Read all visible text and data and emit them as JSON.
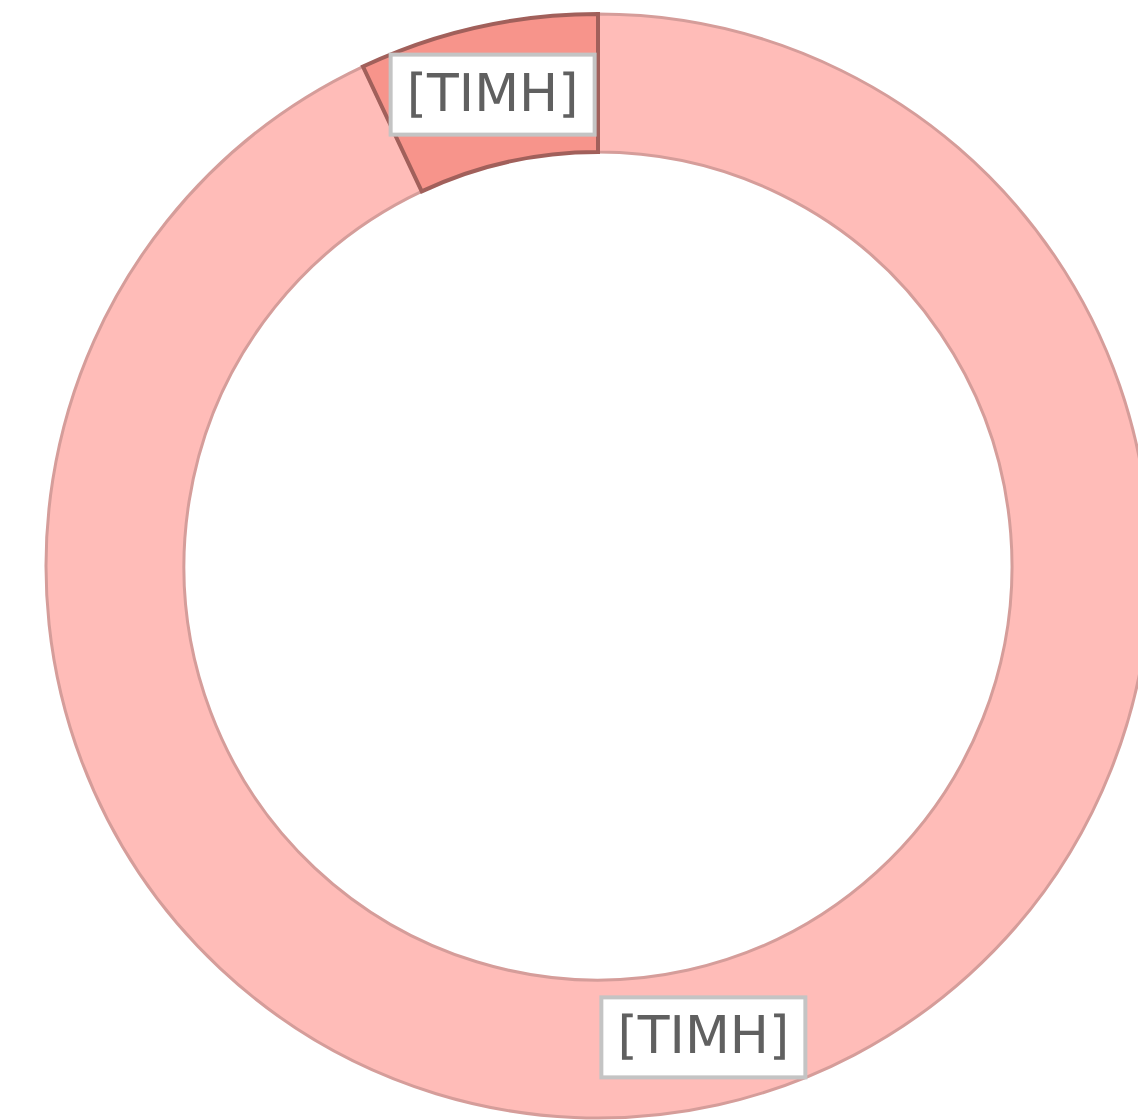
{
  "chart_data": {
    "type": "donut",
    "categories": [
      null,
      null
    ],
    "values": [
      93,
      7
    ],
    "colors": [
      "#ffbcb8",
      "#f7948b"
    ],
    "value_labels": [
      "[ΤΙΜΗ]",
      "[ΤΙΜΗ]"
    ]
  }
}
